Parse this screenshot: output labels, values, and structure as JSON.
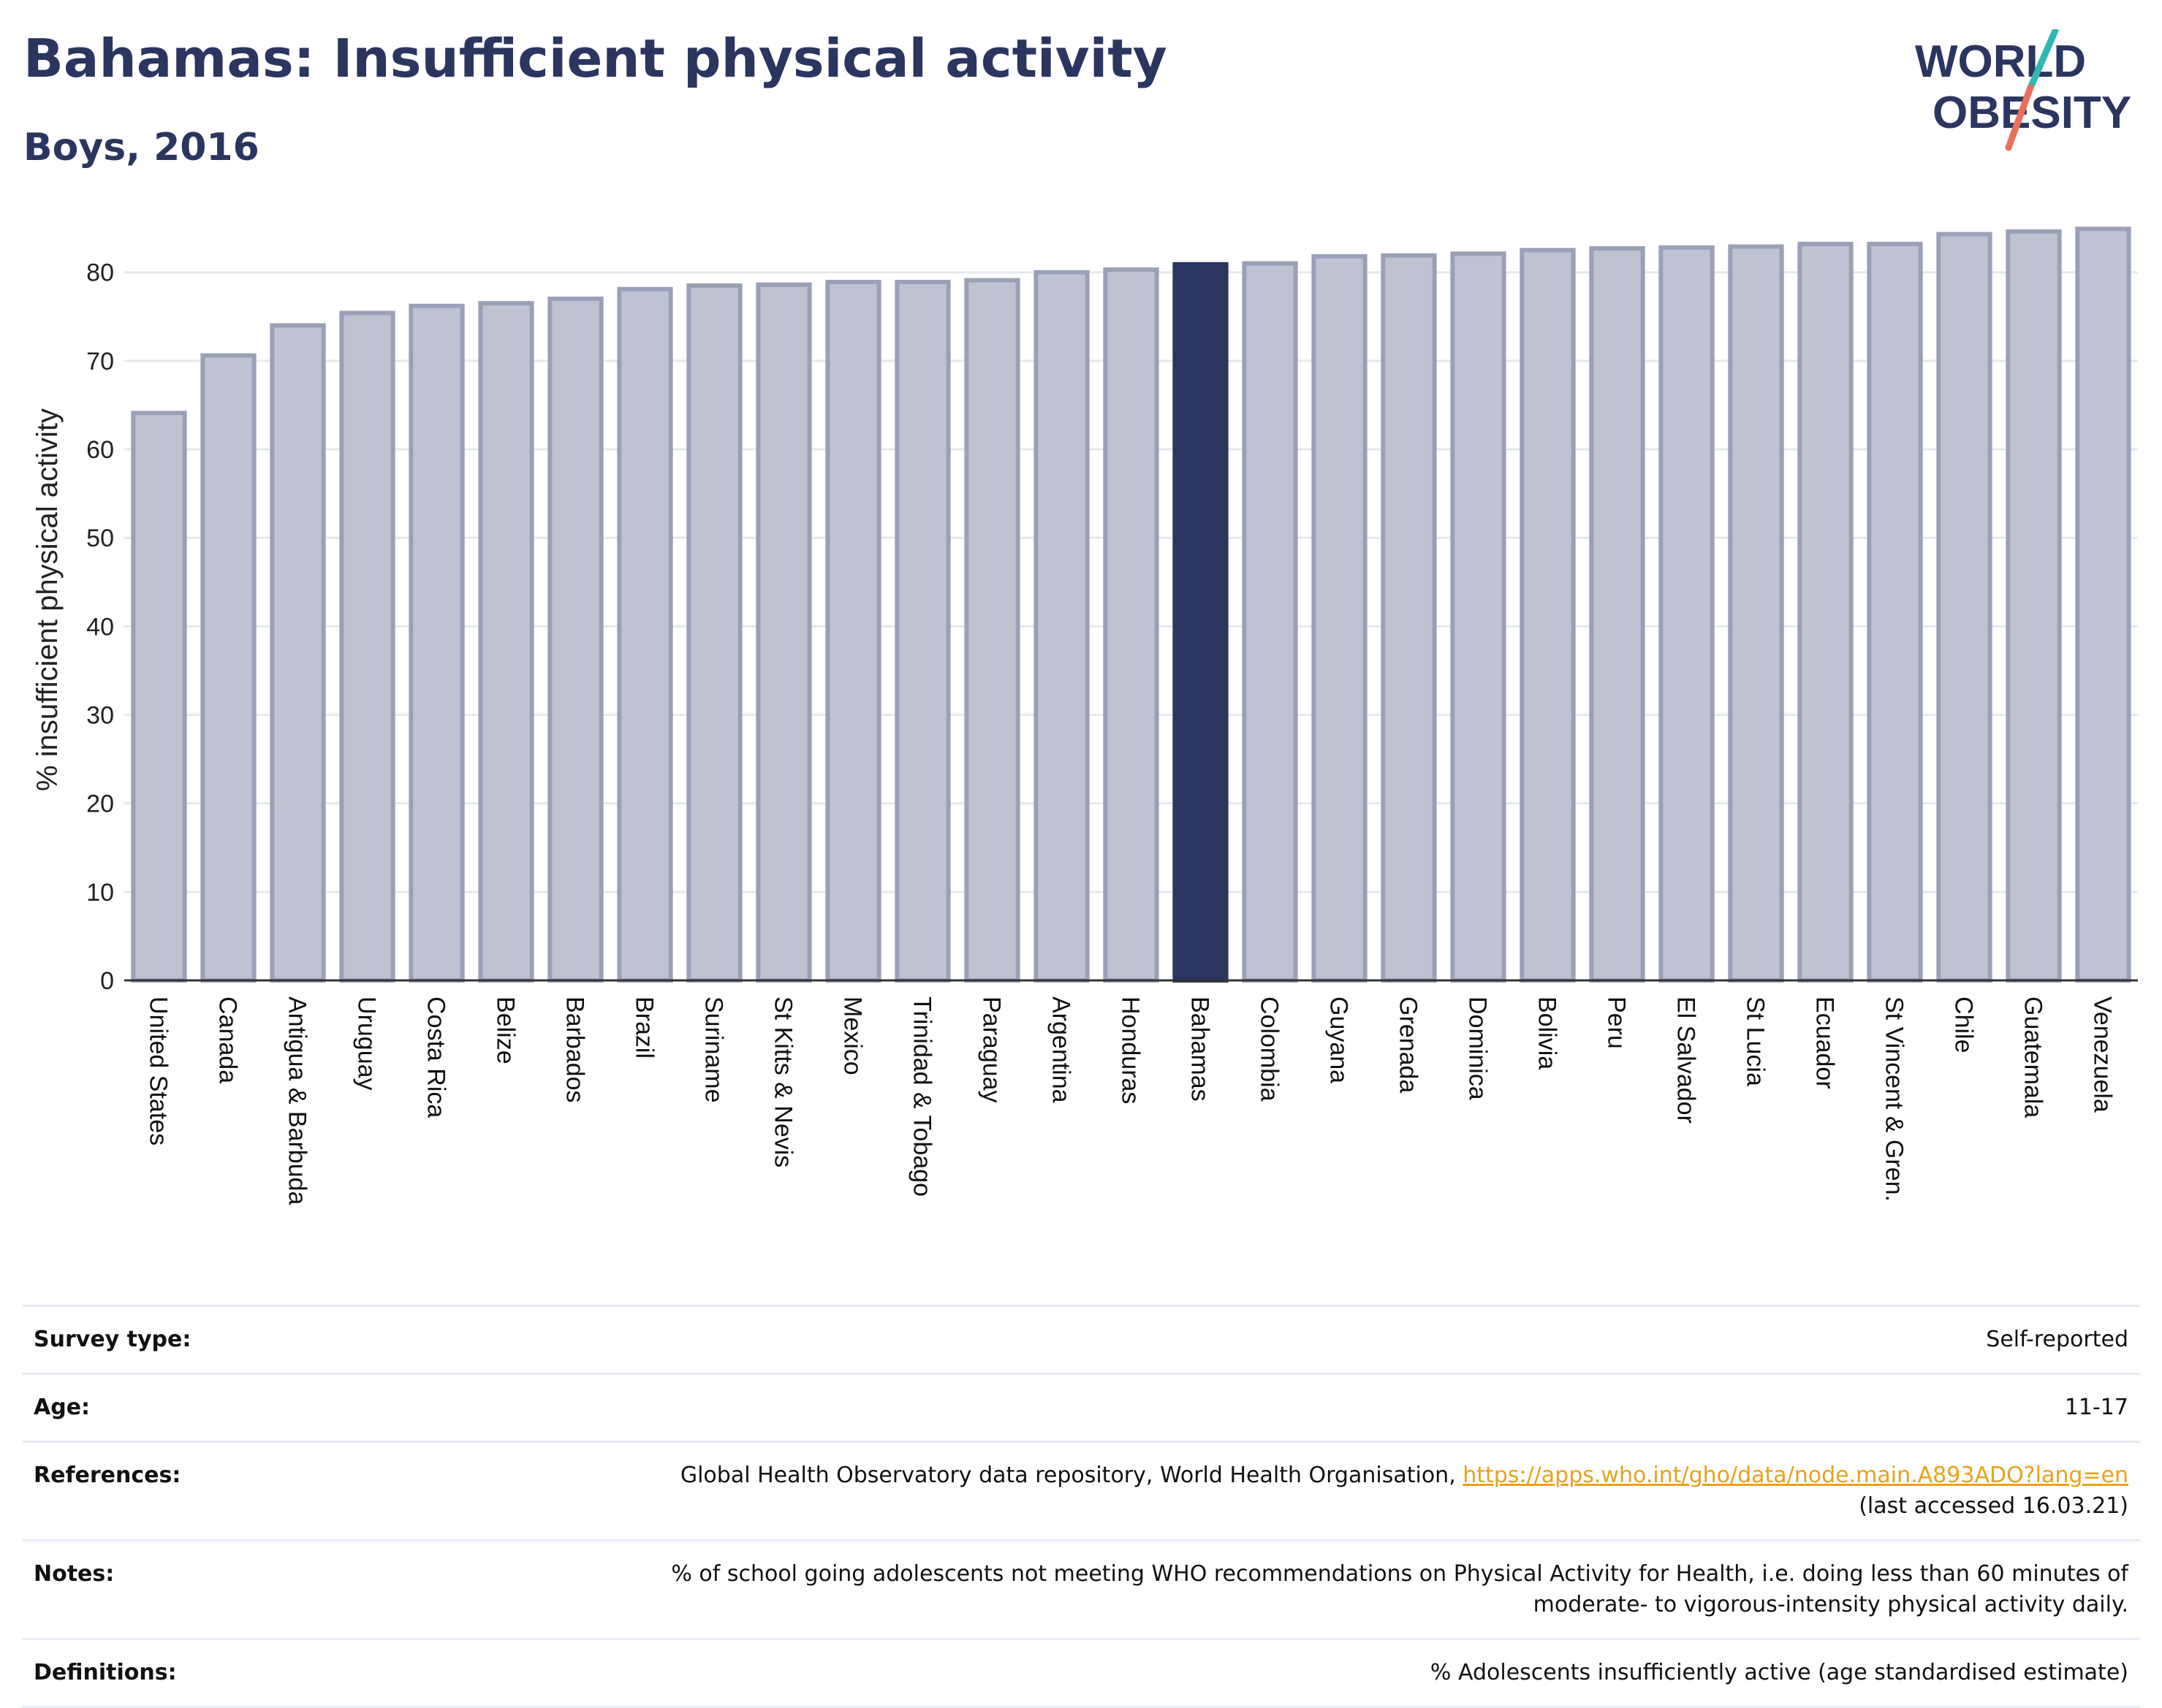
{
  "header": {
    "title": "Bahamas: Insufficient physical activity",
    "subtitle": "Boys, 2016",
    "logo_line1": "WORLD",
    "logo_line2": "OBESITY"
  },
  "colors": {
    "title": "#2a3560",
    "highlight_bar": "#2a3560",
    "bar_fill": "#bfc3d1",
    "bar_stroke": "#9aa0b8",
    "logo_teal": "#2fb8b0",
    "logo_coral": "#e8705a",
    "link": "#e8a21a"
  },
  "chart_data": {
    "type": "bar",
    "title": "Bahamas: Insufficient physical activity",
    "subtitle": "Boys, 2016",
    "ylabel": "% insufficient physical activity",
    "xlabel": "",
    "ylim": [
      0,
      86
    ],
    "yticks": [
      0,
      10,
      20,
      30,
      40,
      50,
      60,
      70,
      80
    ],
    "highlight": "Bahamas",
    "grid": true,
    "categories": [
      "United States",
      "Canada",
      "Antigua & Barbuda",
      "Uruguay",
      "Costa Rica",
      "Belize",
      "Barbados",
      "Brazil",
      "Suriname",
      "St Kitts & Nevis",
      "Mexico",
      "Trinidad & Tobago",
      "Paraguay",
      "Argentina",
      "Honduras",
      "Bahamas",
      "Colombia",
      "Guyana",
      "Grenada",
      "Dominica",
      "Bolivia",
      "Peru",
      "El Salvador",
      "St Lucia",
      "Ecuador",
      "St Vincent & Gren.",
      "Chile",
      "Guatemala",
      "Venezuela"
    ],
    "values": [
      64.1,
      70.6,
      74.0,
      75.4,
      76.2,
      76.5,
      77.0,
      78.1,
      78.5,
      78.6,
      78.9,
      78.9,
      79.1,
      80.0,
      80.3,
      80.9,
      81.0,
      81.8,
      81.9,
      82.1,
      82.5,
      82.7,
      82.8,
      82.9,
      83.2,
      83.2,
      84.3,
      84.6,
      84.9
    ]
  },
  "info": {
    "survey_type_label": "Survey type:",
    "survey_type_value": "Self-reported",
    "age_label": "Age:",
    "age_value": "11-17",
    "references_label": "References:",
    "references_text": "Global Health Observatory data repository, World Health Organisation, ",
    "references_link": "https://apps.who.int/gho/data/node.main.A893ADO?lang=en",
    "references_accessed": "(last accessed 16.03.21)",
    "notes_label": "Notes:",
    "notes_line1": "% of school going adolescents not meeting WHO recommendations on Physical Activity for Health, i.e. doing less than 60 minutes of",
    "notes_line2": "moderate- to vigorous-intensity physical activity daily.",
    "definitions_label": "Definitions:",
    "definitions_value": "% Adolescents insufficiently active (age standardised estimate)"
  }
}
